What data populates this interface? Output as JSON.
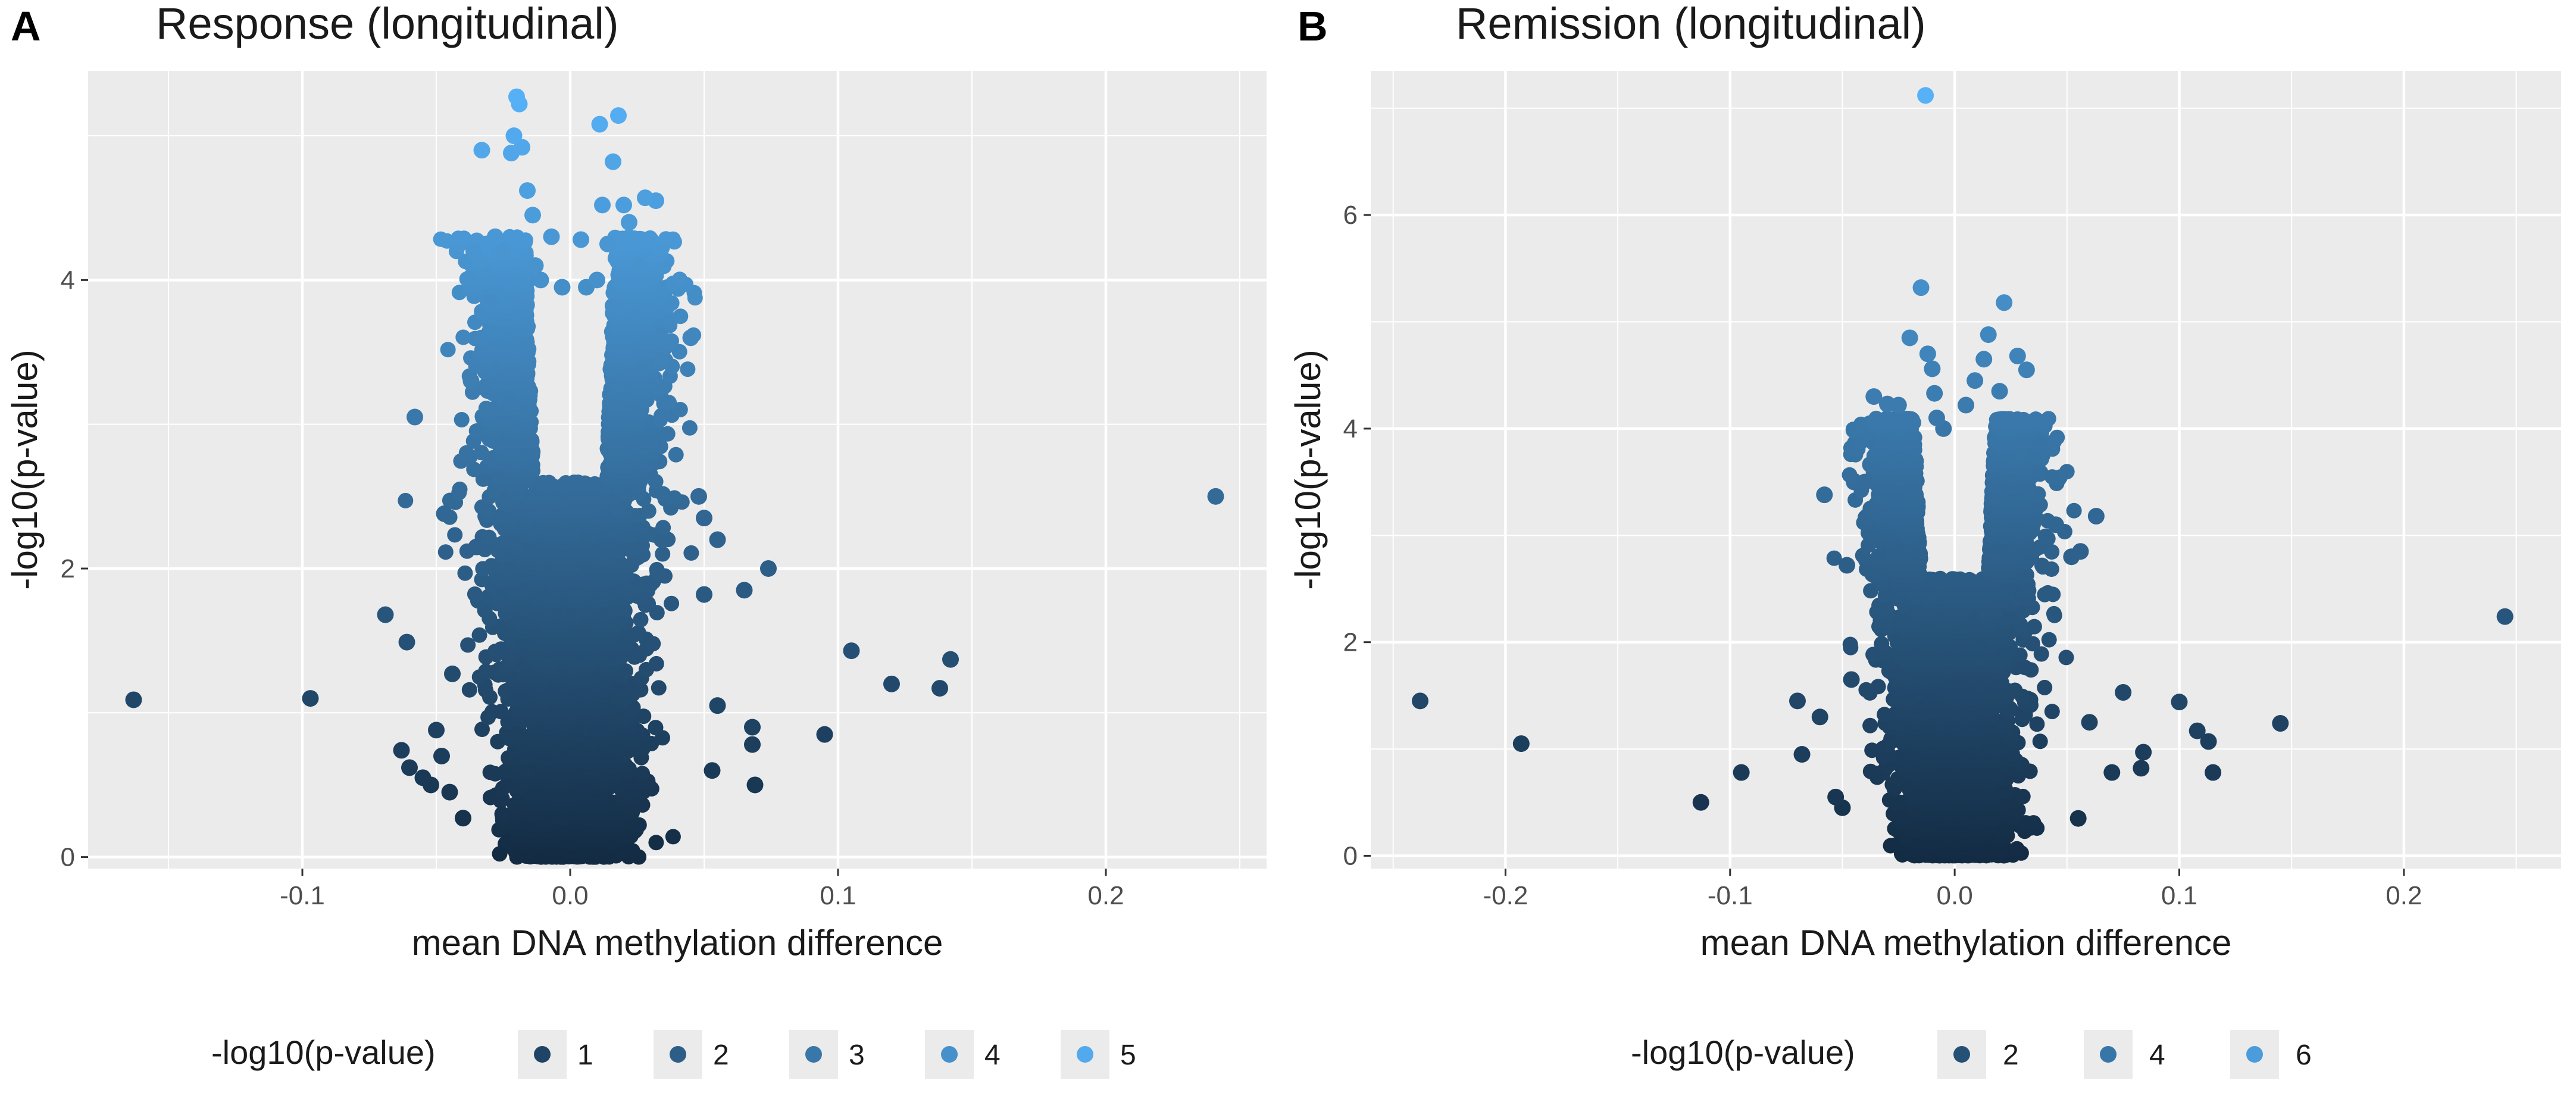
{
  "colors": {
    "low": "#132B43",
    "high": "#56B1F7",
    "panel_bg": "#ebebeb",
    "grid": "#ffffff"
  },
  "chart_data": [
    {
      "type": "scatter",
      "panel_letter": "A",
      "title": "Response (longitudinal)",
      "xlabel": "mean DNA methylation difference",
      "ylabel": "-log10(p-value)",
      "xlim": [
        -0.18,
        0.26
      ],
      "ylim": [
        -0.08,
        5.45
      ],
      "x_ticks": [
        -0.1,
        0.0,
        0.1,
        0.2
      ],
      "x_tick_labels": [
        "-0.1",
        "0.0",
        "0.1",
        "0.2"
      ],
      "y_ticks": [
        0,
        2,
        4
      ],
      "y_tick_labels": [
        "0",
        "2",
        "4"
      ],
      "color_range": [
        0,
        5.3
      ],
      "legend": {
        "title": "-log10(p-value)",
        "keys": [
          {
            "value": 1,
            "label": "1"
          },
          {
            "value": 2,
            "label": "2"
          },
          {
            "value": 3,
            "label": "3"
          },
          {
            "value": 4,
            "label": "4"
          },
          {
            "value": 5,
            "label": "5"
          }
        ]
      },
      "cloud": {
        "center": 0.0,
        "spread": 0.0095,
        "ymax": 4.3,
        "count": 5200
      },
      "points": [
        [
          -0.163,
          1.09
        ],
        [
          -0.097,
          1.1
        ],
        [
          -0.069,
          1.68
        ],
        [
          -0.061,
          1.49
        ],
        [
          -0.058,
          3.05
        ],
        [
          -0.063,
          0.74
        ],
        [
          -0.06,
          0.62
        ],
        [
          -0.055,
          0.55
        ],
        [
          -0.05,
          0.88
        ],
        [
          -0.048,
          0.7
        ],
        [
          -0.052,
          0.5
        ],
        [
          -0.047,
          2.38
        ],
        [
          -0.045,
          0.45
        ],
        [
          -0.044,
          1.27
        ],
        [
          -0.04,
          0.27
        ],
        [
          -0.037,
          3.3
        ],
        [
          -0.035,
          2.15
        ],
        [
          -0.036,
          4.2
        ],
        [
          -0.033,
          4.9
        ],
        [
          -0.03,
          3.85
        ],
        [
          -0.028,
          4.3
        ],
        [
          -0.025,
          4.2
        ],
        [
          -0.022,
          4.88
        ],
        [
          -0.021,
          5.0
        ],
        [
          -0.02,
          5.27
        ],
        [
          -0.019,
          5.22
        ],
        [
          -0.018,
          4.92
        ],
        [
          -0.016,
          4.62
        ],
        [
          -0.014,
          4.45
        ],
        [
          -0.013,
          4.1
        ],
        [
          -0.011,
          4.0
        ],
        [
          -0.007,
          4.3
        ],
        [
          -0.003,
          3.95
        ],
        [
          0.004,
          4.28
        ],
        [
          0.006,
          3.95
        ],
        [
          0.01,
          4.0
        ],
        [
          0.011,
          5.08
        ],
        [
          0.012,
          4.52
        ],
        [
          0.014,
          4.25
        ],
        [
          0.016,
          4.82
        ],
        [
          0.018,
          5.14
        ],
        [
          0.02,
          4.52
        ],
        [
          0.022,
          4.4
        ],
        [
          0.026,
          4.1
        ],
        [
          0.028,
          4.57
        ],
        [
          0.032,
          4.55
        ],
        [
          0.034,
          3.6
        ],
        [
          0.045,
          3.6
        ],
        [
          0.048,
          2.5
        ],
        [
          0.05,
          2.35
        ],
        [
          0.055,
          2.2
        ],
        [
          0.05,
          1.82
        ],
        [
          0.055,
          1.05
        ],
        [
          0.053,
          0.6
        ],
        [
          0.065,
          1.85
        ],
        [
          0.068,
          0.9
        ],
        [
          0.068,
          0.78
        ],
        [
          0.069,
          0.5
        ],
        [
          0.074,
          2.0
        ],
        [
          0.095,
          0.85
        ],
        [
          0.105,
          1.43
        ],
        [
          0.12,
          1.2
        ],
        [
          0.138,
          1.17
        ],
        [
          0.142,
          1.37
        ],
        [
          0.241,
          2.5
        ]
      ]
    },
    {
      "type": "scatter",
      "panel_letter": "B",
      "title": "Remission (longitudinal)",
      "xlabel": "mean DNA methylation difference",
      "ylabel": "-log10(p-value)",
      "xlim": [
        -0.26,
        0.27
      ],
      "ylim": [
        -0.12,
        7.35
      ],
      "x_ticks": [
        -0.2,
        -0.1,
        0.0,
        0.1,
        0.2
      ],
      "x_tick_labels": [
        "-0.2",
        "-0.1",
        "0.0",
        "0.1",
        "0.2"
      ],
      "y_ticks": [
        0,
        2,
        4,
        6
      ],
      "y_tick_labels": [
        "0",
        "2",
        "4",
        "6"
      ],
      "color_range": [
        0,
        7.1
      ],
      "legend": {
        "title": "-log10(p-value)",
        "keys": [
          {
            "value": 2,
            "label": "2"
          },
          {
            "value": 4,
            "label": "4"
          },
          {
            "value": 6,
            "label": "6"
          }
        ]
      },
      "cloud": {
        "center": 0.0,
        "spread": 0.0105,
        "ymax": 4.1,
        "count": 4200
      },
      "points": [
        [
          -0.238,
          1.45
        ],
        [
          -0.193,
          1.05
        ],
        [
          -0.113,
          0.5
        ],
        [
          -0.095,
          0.78
        ],
        [
          -0.07,
          1.45
        ],
        [
          -0.068,
          0.95
        ],
        [
          -0.06,
          1.3
        ],
        [
          -0.058,
          3.38
        ],
        [
          -0.053,
          0.55
        ],
        [
          -0.048,
          2.72
        ],
        [
          -0.046,
          1.65
        ],
        [
          -0.05,
          0.45
        ],
        [
          -0.04,
          3.5
        ],
        [
          -0.036,
          4.3
        ],
        [
          -0.03,
          4.23
        ],
        [
          -0.025,
          4.22
        ],
        [
          -0.02,
          4.85
        ],
        [
          -0.015,
          5.32
        ],
        [
          -0.012,
          4.7
        ],
        [
          -0.01,
          4.56
        ],
        [
          -0.009,
          4.33
        ],
        [
          -0.008,
          4.1
        ],
        [
          -0.005,
          4.0
        ],
        [
          -0.013,
          7.12
        ],
        [
          0.005,
          4.22
        ],
        [
          0.009,
          4.45
        ],
        [
          0.013,
          4.65
        ],
        [
          0.015,
          4.88
        ],
        [
          0.02,
          4.35
        ],
        [
          0.022,
          5.18
        ],
        [
          0.028,
          4.68
        ],
        [
          0.032,
          4.55
        ],
        [
          0.035,
          3.75
        ],
        [
          0.038,
          3.85
        ],
        [
          0.045,
          3.1
        ],
        [
          0.052,
          2.8
        ],
        [
          0.056,
          2.85
        ],
        [
          0.055,
          0.35
        ],
        [
          0.06,
          1.25
        ],
        [
          0.063,
          3.18
        ],
        [
          0.07,
          0.78
        ],
        [
          0.075,
          1.53
        ],
        [
          0.083,
          0.82
        ],
        [
          0.084,
          0.97
        ],
        [
          0.1,
          1.44
        ],
        [
          0.108,
          1.17
        ],
        [
          0.113,
          1.07
        ],
        [
          0.115,
          0.78
        ],
        [
          0.145,
          1.24
        ],
        [
          0.245,
          2.24
        ]
      ]
    }
  ]
}
